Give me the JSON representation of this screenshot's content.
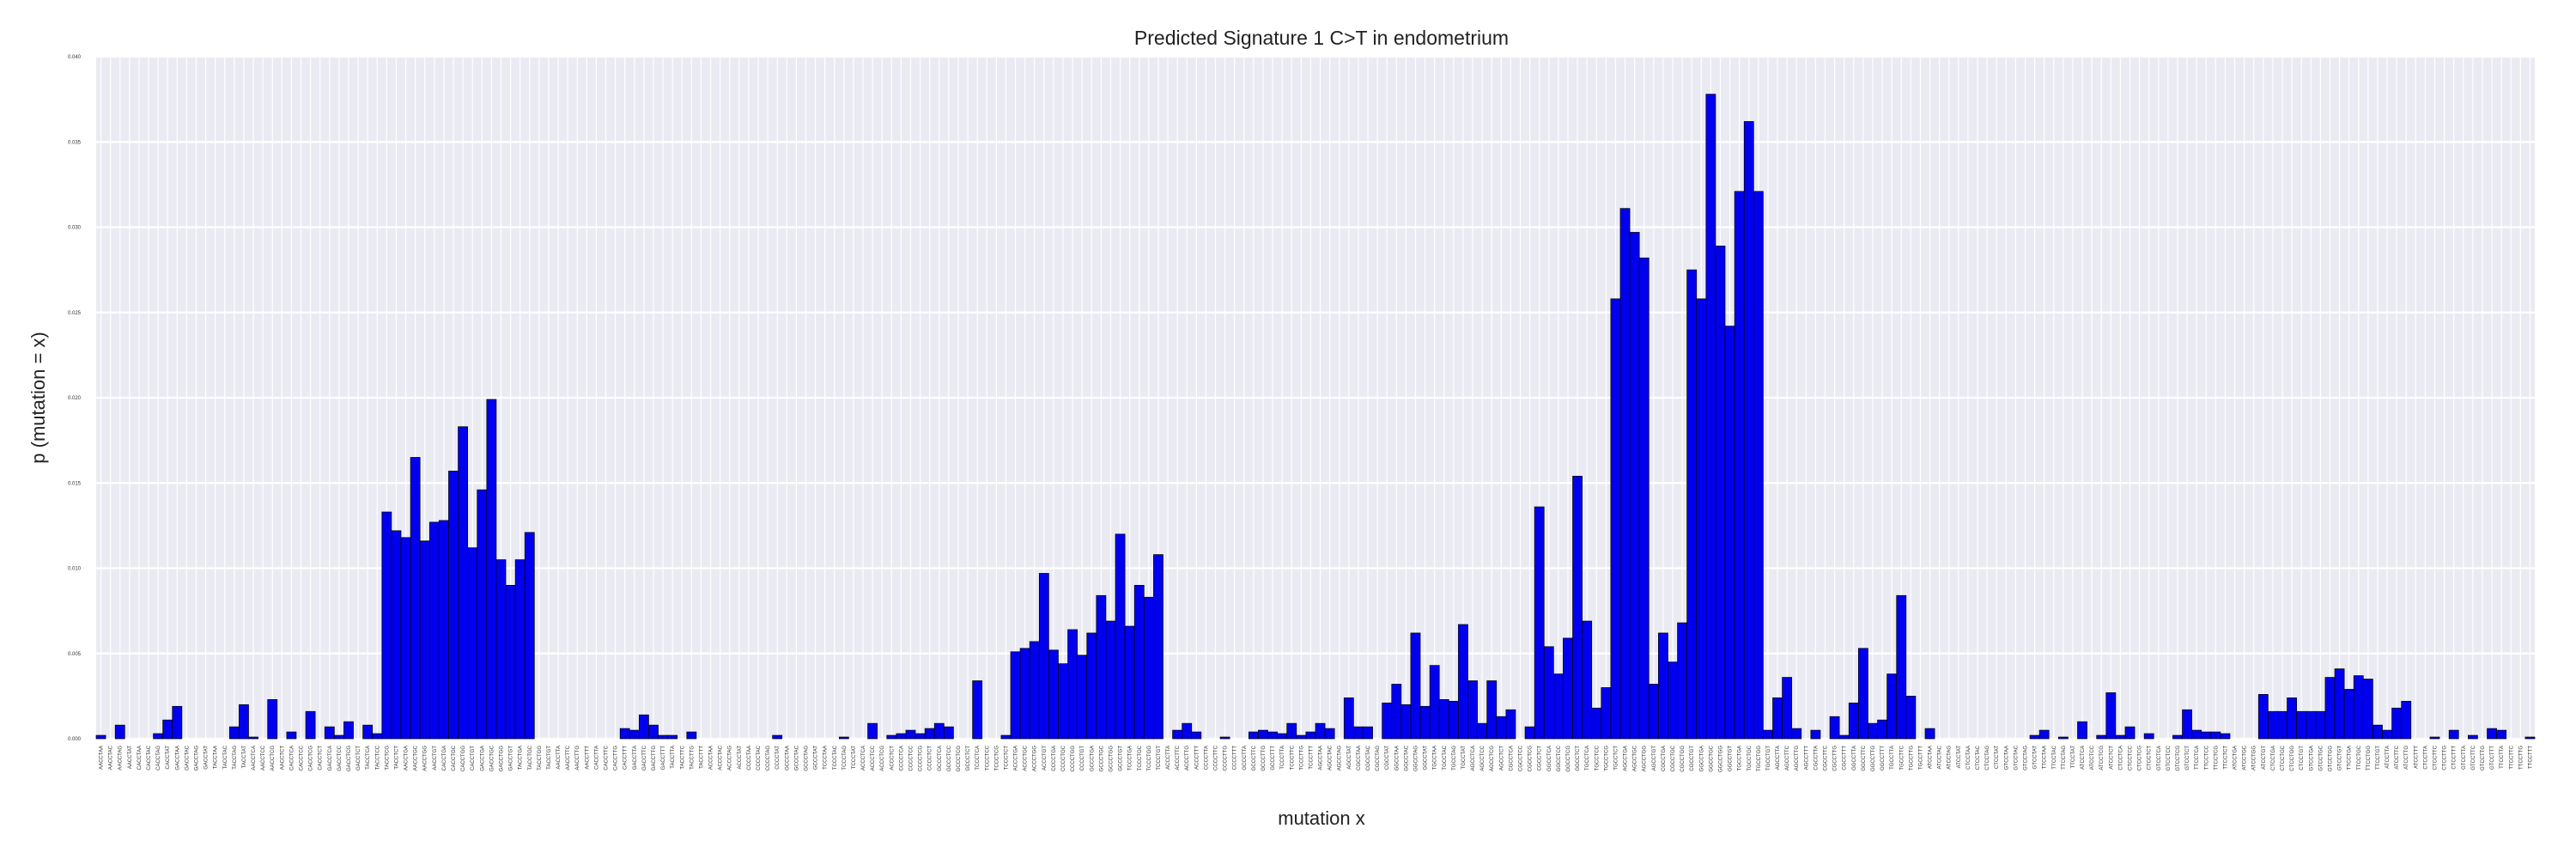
{
  "chart_data": {
    "type": "bar",
    "title": "Predicted Signature 1 C>T in endometrium",
    "xlabel": "mutation x",
    "ylabel": "p (mutation = x)",
    "ylim": [
      0,
      0.04
    ],
    "yticks": [
      "0.000",
      "0.005",
      "0.010",
      "0.015",
      "0.020",
      "0.025",
      "0.030",
      "0.035",
      "0.040"
    ],
    "grid": true,
    "legend": "none",
    "colors": {
      "bar": "#0000ee",
      "bar_edge": "#000000",
      "plot_bg": "#eaeaf2",
      "grid": "#ffffff"
    },
    "categories": [
      "AACCTAA",
      "AACCTAC",
      "AACCTAG",
      "AACCTAT",
      "CACCTAA",
      "CACCTAC",
      "CACCTAG",
      "CACCTAT",
      "GACCTAA",
      "GACCTAC",
      "GACCTAG",
      "GACCTAT",
      "TACCTAA",
      "TACCTAC",
      "TACCTAG",
      "TACCTAT",
      "AACCTCA",
      "AACCTCC",
      "AACCTCG",
      "AACCTCT",
      "CACCTCA",
      "CACCTCC",
      "CACCTCG",
      "CACCTCT",
      "GACCTCA",
      "GACCTCC",
      "GACCTCG",
      "GACCTCT",
      "TACCTCA",
      "TACCTCC",
      "TACCTCG",
      "TACCTCT",
      "AACCTGA",
      "AACCTGC",
      "AACCTGG",
      "AACCTGT",
      "CACCTGA",
      "CACCTGC",
      "CACCTGG",
      "CACCTGT",
      "GACCTGA",
      "GACCTGC",
      "GACCTGG",
      "GACCTGT",
      "TACCTGA",
      "TACCTGC",
      "TACCTGG",
      "TACCTGT",
      "AACCTTA",
      "AACCTTC",
      "AACCTTG",
      "AACCTTT",
      "CACCTTA",
      "CACCTTC",
      "CACCTTG",
      "CACCTTT",
      "GACCTTA",
      "GACCTTC",
      "GACCTTG",
      "GACCTTT",
      "TACCTTA",
      "TACCTTC",
      "TACCTTG",
      "TACCTTT",
      "ACCCTAA",
      "ACCCTAC",
      "ACCCTAG",
      "ACCCTAT",
      "CCCCTAA",
      "CCCCTAC",
      "CCCCTAG",
      "CCCCTAT",
      "GCCCTAA",
      "GCCCTAC",
      "GCCCTAG",
      "GCCCTAT",
      "TCCCTAA",
      "TCCCTAC",
      "TCCCTAG",
      "TCCCTAT",
      "ACCCTCA",
      "ACCCTCC",
      "ACCCTCG",
      "ACCCTCT",
      "CCCCTCA",
      "CCCCTCC",
      "CCCCTCG",
      "CCCCTCT",
      "GCCCTCA",
      "GCCCTCC",
      "GCCCTCG",
      "GCCCTCT",
      "TCCCTCA",
      "TCCCTCC",
      "TCCCTCG",
      "TCCCTCT",
      "ACCCTGA",
      "ACCCTGC",
      "ACCCTGG",
      "ACCCTGT",
      "CCCCTGA",
      "CCCCTGC",
      "CCCCTGG",
      "CCCCTGT",
      "GCCCTGA",
      "GCCCTGC",
      "GCCCTGG",
      "GCCCTGT",
      "TCCCTGA",
      "TCCCTGC",
      "TCCCTGG",
      "TCCCTGT",
      "ACCCTTA",
      "ACCCTTC",
      "ACCCTTG",
      "ACCCTTT",
      "CCCCTTA",
      "CCCCTTC",
      "CCCCTTG",
      "CCCCTTT",
      "GCCCTTA",
      "GCCCTTC",
      "GCCCTTG",
      "GCCCTTT",
      "TCCCTTA",
      "TCCCTTC",
      "TCCCTTG",
      "TCCCTTT",
      "AGCCTAA",
      "AGCCTAC",
      "AGCCTAG",
      "AGCCTAT",
      "CGCCTAA",
      "CGCCTAC",
      "CGCCTAG",
      "CGCCTAT",
      "GGCCTAA",
      "GGCCTAC",
      "GGCCTAG",
      "GGCCTAT",
      "TGCCTAA",
      "TGCCTAC",
      "TGCCTAG",
      "TGCCTAT",
      "AGCCTCA",
      "AGCCTCC",
      "AGCCTCG",
      "AGCCTCT",
      "CGCCTCA",
      "CGCCTCC",
      "CGCCTCG",
      "CGCCTCT",
      "GGCCTCA",
      "GGCCTCC",
      "GGCCTCG",
      "GGCCTCT",
      "TGCCTCA",
      "TGCCTCC",
      "TGCCTCG",
      "TGCCTCT",
      "AGCCTGA",
      "AGCCTGC",
      "AGCCTGG",
      "AGCCTGT",
      "CGCCTGA",
      "CGCCTGC",
      "CGCCTGG",
      "CGCCTGT",
      "GGCCTGA",
      "GGCCTGC",
      "GGCCTGG",
      "GGCCTGT",
      "TGCCTGA",
      "TGCCTGC",
      "TGCCTGG",
      "TGCCTGT",
      "AGCCTTA",
      "AGCCTTC",
      "AGCCTTG",
      "AGCCTTT",
      "CGCCTTA",
      "CGCCTTC",
      "CGCCTTG",
      "CGCCTTT",
      "GGCCTTA",
      "GGCCTTC",
      "GGCCTTG",
      "GGCCTTT",
      "TGCCTTA",
      "TGCCTTC",
      "TGCCTTG",
      "TGCCTTT",
      "ATCCTAA",
      "ATCCTAC",
      "ATCCTAG",
      "ATCCTAT",
      "CTCCTAA",
      "CTCCTAC",
      "CTCCTAG",
      "CTCCTAT",
      "GTCCTAA",
      "GTCCTAC",
      "GTCCTAG",
      "GTCCTAT",
      "TTCCTAA",
      "TTCCTAC",
      "TTCCTAG",
      "TTCCTAT",
      "ATCCTCA",
      "ATCCTCC",
      "ATCCTCG",
      "ATCCTCT",
      "CTCCTCA",
      "CTCCTCC",
      "CTCCTCG",
      "CTCCTCT",
      "GTCCTCA",
      "GTCCTCC",
      "GTCCTCG",
      "GTCCTCT",
      "TTCCTCA",
      "TTCCTCC",
      "TTCCTCG",
      "TTCCTCT",
      "ATCCTGA",
      "ATCCTGC",
      "ATCCTGG",
      "ATCCTGT",
      "CTCCTGA",
      "CTCCTGC",
      "CTCCTGG",
      "CTCCTGT",
      "GTCCTGA",
      "GTCCTGC",
      "GTCCTGG",
      "GTCCTGT",
      "TTCCTGA",
      "TTCCTGC",
      "TTCCTGG",
      "TTCCTGT",
      "ATCCTTA",
      "ATCCTTC",
      "ATCCTTG",
      "ATCCTTT",
      "CTCCTTA",
      "CTCCTTC",
      "CTCCTTG",
      "CTCCTTT",
      "GTCCTTA",
      "GTCCTTC",
      "GTCCTTG",
      "GTCCTTT",
      "TTCCTTA",
      "TTCCTTC",
      "TTCCTTG",
      "TTCCTTT"
    ],
    "values": [
      0.0002,
      0,
      0.0008,
      0,
      0,
      0,
      0.0003,
      0.0011,
      0.0019,
      0,
      0,
      0,
      0,
      0,
      0.0007,
      0.002,
      0.0001,
      0,
      0.0023,
      0,
      0.0004,
      0,
      0.0016,
      0,
      0.0007,
      0.0002,
      0.001,
      0,
      0.0008,
      0.0003,
      0.0133,
      0.0122,
      0.0118,
      0.0165,
      0.0116,
      0.0127,
      0.0128,
      0.0157,
      0.0183,
      0.0112,
      0.0146,
      0.0199,
      0.0105,
      0.009,
      0.0105,
      0.0121,
      0,
      0,
      0,
      0,
      0,
      0,
      0,
      0,
      0,
      0.0006,
      0.0005,
      0.0014,
      0.0008,
      0.0002,
      0.0002,
      0,
      0.0004,
      0,
      0,
      0,
      0,
      0,
      0,
      0,
      0,
      0.0002,
      0,
      0,
      0,
      0,
      0,
      0,
      0.0001,
      0,
      0,
      0.0009,
      0,
      0.0002,
      0.0003,
      0.0005,
      0.0003,
      0.0006,
      0.0009,
      0.0007,
      0,
      0,
      0.0034,
      0,
      0,
      0.0002,
      0.0051,
      0.0053,
      0.0057,
      0.0097,
      0.0052,
      0.0044,
      0.0064,
      0.0049,
      0.0062,
      0.0084,
      0.0069,
      0.012,
      0.0066,
      0.009,
      0.0083,
      0.0108,
      0,
      0.0005,
      0.0009,
      0.0004,
      0,
      0,
      0.0001,
      0,
      0,
      0.0004,
      0.0005,
      0.0004,
      0.0003,
      0.0009,
      0.0002,
      0.0004,
      0.0009,
      0.0006,
      0,
      0.0024,
      0.0007,
      0.0007,
      0,
      0.0021,
      0.0032,
      0.002,
      0.0062,
      0.0019,
      0.0043,
      0.0023,
      0.0022,
      0.0067,
      0.0034,
      0.0009,
      0.0034,
      0.0013,
      0.0017,
      0,
      0.0007,
      0.0136,
      0.0054,
      0.0038,
      0.0059,
      0.0154,
      0.0069,
      0.0018,
      0.003,
      0.0258,
      0.0311,
      0.0297,
      0.0282,
      0.0032,
      0.0062,
      0.0045,
      0.0068,
      0.0275,
      0.0258,
      0.0378,
      0.0289,
      0.0242,
      0.0321,
      0.0362,
      0.0321,
      0.0005,
      0.0024,
      0.0036,
      0.0006,
      0,
      0.0005,
      0,
      0.0013,
      0.0002,
      0.0021,
      0.0053,
      0.0009,
      0.0011,
      0.0038,
      0.0084,
      0.0025,
      0,
      0.0006,
      0,
      0,
      0,
      0,
      0,
      0,
      0,
      0,
      0,
      0,
      0.0002,
      0.0005,
      0,
      0.0001,
      0,
      0.001,
      0,
      0.0002,
      0.0027,
      0.0002,
      0.0007,
      0,
      0.0003,
      0,
      0,
      0.0002,
      0.0017,
      0.0005,
      0.0004,
      0.0004,
      0.0003,
      0,
      0,
      0,
      0.0026,
      0.0016,
      0.0016,
      0.0024,
      0.0016,
      0.0016,
      0.0016,
      0.0036,
      0.0041,
      0.0029,
      0.0037,
      0.0035,
      0.0008,
      0.0005,
      0.0018,
      0.0022,
      0,
      0,
      0.0001,
      0,
      0.0005,
      0,
      0.0002,
      0,
      0.0006,
      0.0005,
      0,
      0,
      0.0001
    ]
  }
}
